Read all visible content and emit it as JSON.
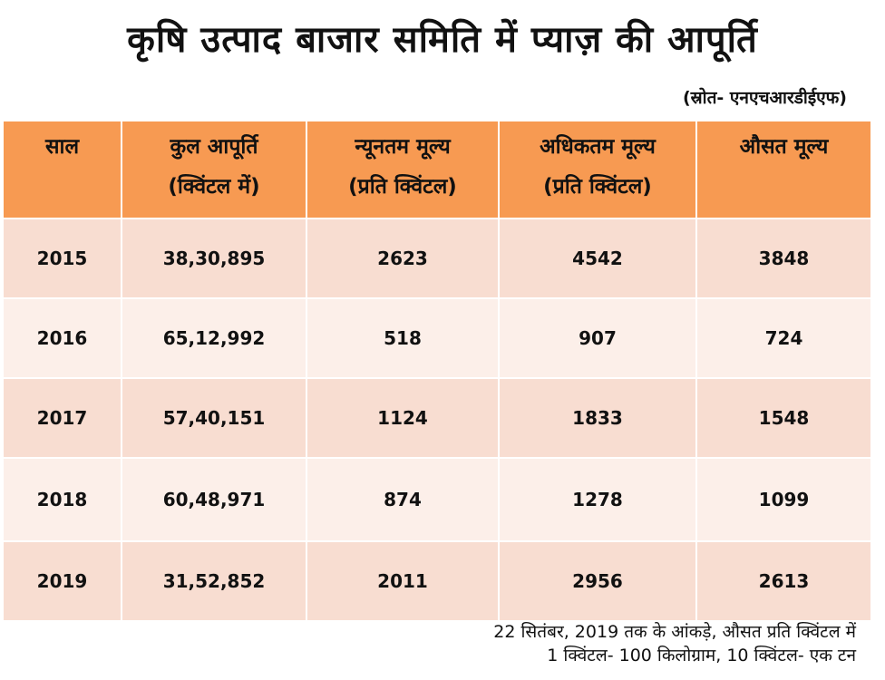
{
  "title": "कृषि उत्पाद बाजार समिति में प्याज़ की आपूर्ति",
  "source": "(स्रोत- एनएचआरडीईएफ)",
  "table": {
    "headers": [
      [
        "साल"
      ],
      [
        "कुल आपूर्ति",
        "(क्विंटल में)"
      ],
      [
        "न्यूनतम मूल्य",
        "(प्रति क्विंटल)"
      ],
      [
        "अधिकतम मूल्य",
        "(प्रति क्विंटल)"
      ],
      [
        "औसत मूल्य"
      ]
    ],
    "rows": [
      [
        "2015",
        "38,30,895",
        "2623",
        "4542",
        "3848"
      ],
      [
        "2016",
        "65,12,992",
        "518",
        "907",
        "724"
      ],
      [
        "2017",
        "57,40,151",
        "1124",
        "1833",
        "1548"
      ],
      [
        "2018",
        "60,48,971",
        "874",
        "1278",
        "1099"
      ],
      [
        "2019",
        "31,52,852",
        "2011",
        "2956",
        "2613"
      ]
    ]
  },
  "footnotes": [
    "22 सितंबर, 2019 तक के आंकड़े, औसत प्रति क्विंटल में",
    "1 क्विंटल- 100 किलोग्राम, 10 क्विंटल- एक टन"
  ],
  "colors": {
    "header_bg": "#f79a52",
    "row_dark": "#f8ddd1",
    "row_light": "#fcefe9"
  }
}
